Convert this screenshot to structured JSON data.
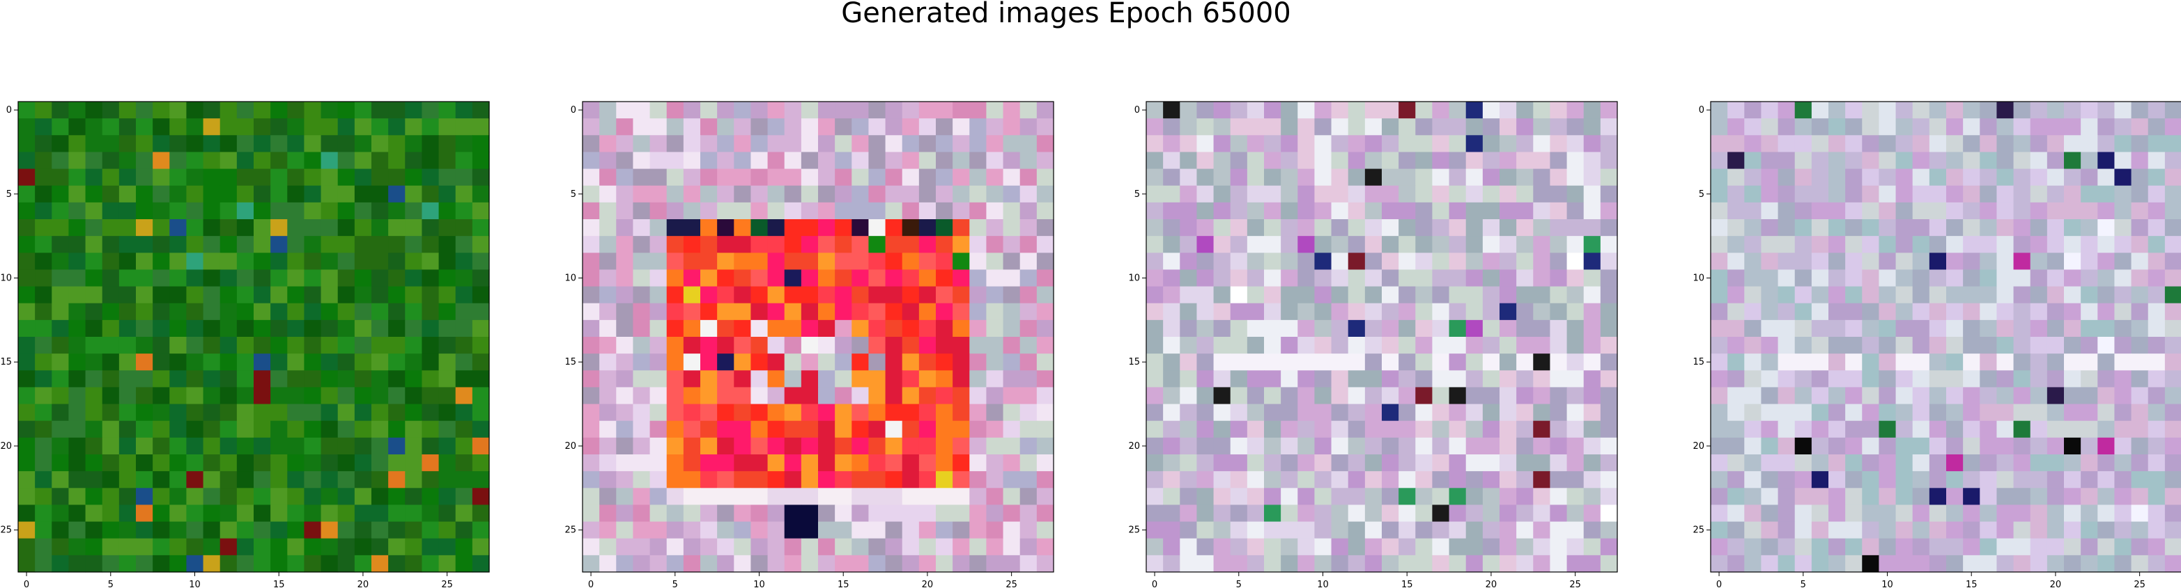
{
  "figure": {
    "title": "Generated images Epoch 65000"
  },
  "chart_data": [
    {
      "type": "heatmap",
      "grid": [
        28,
        28
      ],
      "xticks": [
        "0",
        "5",
        "10",
        "15",
        "20",
        "25"
      ],
      "yticks": [
        "0",
        "5",
        "10",
        "15",
        "20",
        "25"
      ],
      "palette": [
        "#127812",
        "#0b5c0b",
        "#1f8f1f",
        "#3a8a12",
        "#0d6b2a",
        "#2e7d32",
        "#4f9a23",
        "#17621a",
        "#0a7a0a",
        "#256b11"
      ],
      "highlight_colors": [
        "#e08a1e",
        "#c9a21a",
        "#1a4e8a",
        "#2ea37a",
        "#7a1010",
        "#e2771f"
      ],
      "seed": 11
    },
    {
      "type": "heatmap",
      "grid": [
        28,
        28
      ],
      "xticks": [
        "0",
        "5",
        "10",
        "15",
        "20",
        "25"
      ],
      "yticks": [
        "0",
        "5",
        "10",
        "15",
        "20",
        "25"
      ],
      "palette": [
        "#d6b2d8",
        "#e7d4ee",
        "#c3a0cc",
        "#b4c2c8",
        "#e5a0c8",
        "#f2e6f4",
        "#a69ab5",
        "#cdd9cf",
        "#d98ab8",
        "#b0b0cf"
      ],
      "inner_palette": [
        "#ff2a1e",
        "#ff3d4d",
        "#ff7a1e",
        "#ff1a6a",
        "#f5462a",
        "#ff9a2a",
        "#e01a3a",
        "#ff5a5a"
      ],
      "seed": 23
    },
    {
      "type": "heatmap",
      "grid": [
        28,
        28
      ],
      "xticks": [
        "0",
        "5",
        "10",
        "15",
        "20",
        "25"
      ],
      "yticks": [
        "0",
        "5",
        "10",
        "15",
        "20",
        "25"
      ],
      "palette": [
        "#c6b5d6",
        "#e1d6ec",
        "#b8c4c9",
        "#d2a8d6",
        "#eef0f6",
        "#a9a2c2",
        "#cbd8d0",
        "#bf96cf",
        "#9fb0b8",
        "#e6c8de"
      ],
      "accent_colors": [
        "#1a1a1a",
        "#1e2a7a",
        "#2a9a5a",
        "#b04ac0",
        "#7a1a2a",
        "#ffffff"
      ],
      "seed": 37
    },
    {
      "type": "heatmap",
      "grid": [
        28,
        28
      ],
      "xticks": [
        "0",
        "5",
        "10",
        "15",
        "20",
        "25"
      ],
      "yticks": [
        "0",
        "5",
        "10",
        "15",
        "20",
        "25"
      ],
      "palette": [
        "#c4b8d8",
        "#d9c9ea",
        "#b2c0cc",
        "#e0e6ef",
        "#caa2d6",
        "#a6adc2",
        "#cfd6d8",
        "#b7a0cc",
        "#d8b6d6",
        "#a2c2c8"
      ],
      "accent_colors": [
        "#0a0a0a",
        "#1a1a6a",
        "#1e7a3a",
        "#c02aa0",
        "#2a1a4a",
        "#f4f4ff"
      ],
      "seed": 53
    }
  ]
}
